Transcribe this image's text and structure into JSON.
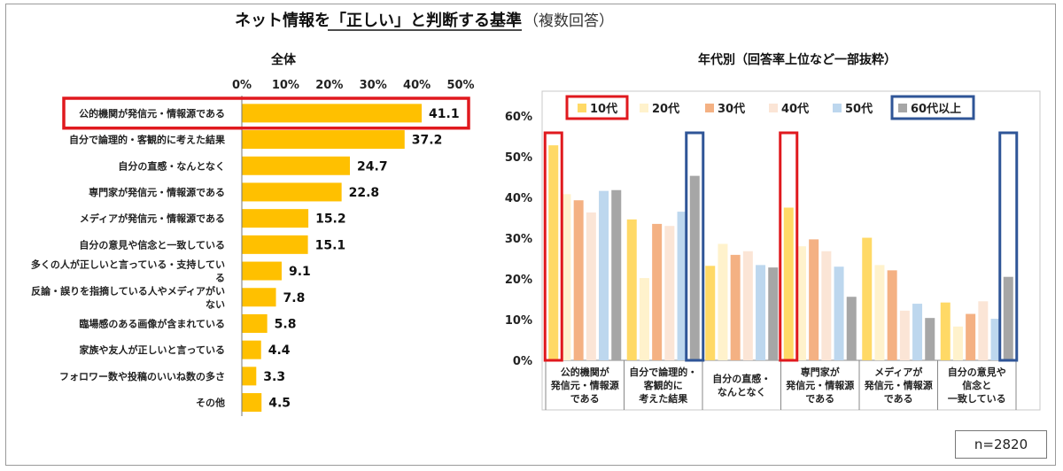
{
  "title": {
    "main": "ネット情報を「正しい」と判断する基準",
    "sub": "（複数回答）"
  },
  "colors": {
    "overall_bar": "#FFC000",
    "highlight_red": "#E0191E",
    "highlight_blue": "#2F5597",
    "frame": "#9a9a9a"
  },
  "sample_size": "n=2820",
  "chart_data": [
    {
      "type": "bar",
      "orientation": "horizontal",
      "title": "全体",
      "categories": [
        "公的機関が発信元・情報源である",
        "自分で論理的・客観的に考えた結果",
        "自分の直感・なんとなく",
        "専門家が発信元・情報源である",
        "メディアが発信元・情報源である",
        "自分の意見や信念と一致している",
        "多くの人が正しいと言っている・支持している",
        "反論・誤りを指摘している人やメディアがいない",
        "臨場感のある画像が含まれている",
        "家族や友人が正しいと言っている",
        "フォロワー数や投稿のいいね数の多さ",
        "その他"
      ],
      "category_lines": [
        [
          "公的機関が発信元・情報源である"
        ],
        [
          "自分で論理的・客観的に考えた結果"
        ],
        [
          "自分の直感・なんとなく"
        ],
        [
          "専門家が発信元・情報源である"
        ],
        [
          "メディアが発信元・情報源である"
        ],
        [
          "自分の意見や信念と一致している"
        ],
        [
          "多くの人が正しいと言っている・支持してい",
          "る"
        ],
        [
          "反論・誤りを指摘している人やメディアがい",
          "ない"
        ],
        [
          "臨場感のある画像が含まれている"
        ],
        [
          "家族や友人が正しいと言っている"
        ],
        [
          "フォロワー数や投稿のいいね数の多さ"
        ],
        [
          "その他"
        ]
      ],
      "values": [
        41.1,
        37.2,
        24.7,
        22.8,
        15.2,
        15.1,
        9.1,
        7.8,
        5.8,
        4.4,
        3.3,
        4.5
      ],
      "value_labels": [
        "41.1",
        "37.2",
        "24.7",
        "22.8",
        "15.2",
        "15.1",
        "9.1",
        "7.8",
        "5.8",
        "4.4",
        "3.3",
        "4.5"
      ],
      "xlim": [
        0,
        50
      ],
      "ticks": [
        0,
        10,
        20,
        30,
        40,
        50
      ],
      "tick_labels": [
        "0%",
        "10%",
        "20%",
        "30%",
        "40%",
        "50%"
      ],
      "axis_position": "top",
      "highlighted_category": "公的機関が発信元・情報源である"
    },
    {
      "type": "bar",
      "orientation": "vertical",
      "title": "年代別（回答率上位など一部抜粋）",
      "categories": [
        "公的機関が発信元・情報源である",
        "自分で論理的・客観的に考えた結果",
        "自分の直感・なんとなく",
        "専門家が発信元・情報源である",
        "メディアが発信元・情報源である",
        "自分の意見や信念と一致している"
      ],
      "category_lines": [
        [
          "公的機関が",
          "発信元・情報源",
          "である"
        ],
        [
          "自分で論理的・",
          "客観的に",
          "考えた結果"
        ],
        [
          "自分の直感・",
          "なんとなく"
        ],
        [
          "専門家が",
          "発信元・情報源",
          "である"
        ],
        [
          "メディアが",
          "発信元・情報源",
          "である"
        ],
        [
          "自分の意見や",
          "信念と",
          "一致している"
        ]
      ],
      "series": [
        {
          "name": "10代",
          "color": "#FFD966",
          "values": [
            52.8,
            34.6,
            23.2,
            37.5,
            30.1,
            14.2
          ]
        },
        {
          "name": "20代",
          "color": "#FFF2CC",
          "values": [
            40.8,
            20.2,
            28.6,
            28.0,
            23.4,
            8.3
          ]
        },
        {
          "name": "30代",
          "color": "#F4B183",
          "values": [
            39.3,
            33.5,
            25.9,
            29.7,
            22.1,
            11.4
          ]
        },
        {
          "name": "40代",
          "color": "#FBE5D6",
          "values": [
            36.3,
            33.0,
            26.8,
            26.8,
            12.2,
            14.5
          ]
        },
        {
          "name": "50代",
          "color": "#BDD7EE",
          "values": [
            41.6,
            36.5,
            23.4,
            23.0,
            13.9,
            10.2
          ]
        },
        {
          "name": "60代以上",
          "color": "#A6A6A6",
          "values": [
            41.8,
            45.3,
            22.8,
            15.6,
            10.4,
            20.5
          ]
        }
      ],
      "ylim": [
        0,
        60
      ],
      "ticks": [
        0,
        10,
        20,
        30,
        40,
        50,
        60
      ],
      "tick_labels": [
        "0%",
        "10%",
        "20%",
        "30%",
        "40%",
        "50%",
        "60%"
      ],
      "legend_position": "top",
      "highlighted_series": [
        {
          "series": "10代",
          "categories": [
            "公的機関が発信元・情報源である",
            "専門家が発信元・情報源である"
          ],
          "color": "red"
        },
        {
          "series": "60代以上",
          "categories": [
            "自分で論理的・客観的に考えた結果",
            "自分の意見や信念と一致している"
          ],
          "color": "blue"
        }
      ]
    }
  ]
}
